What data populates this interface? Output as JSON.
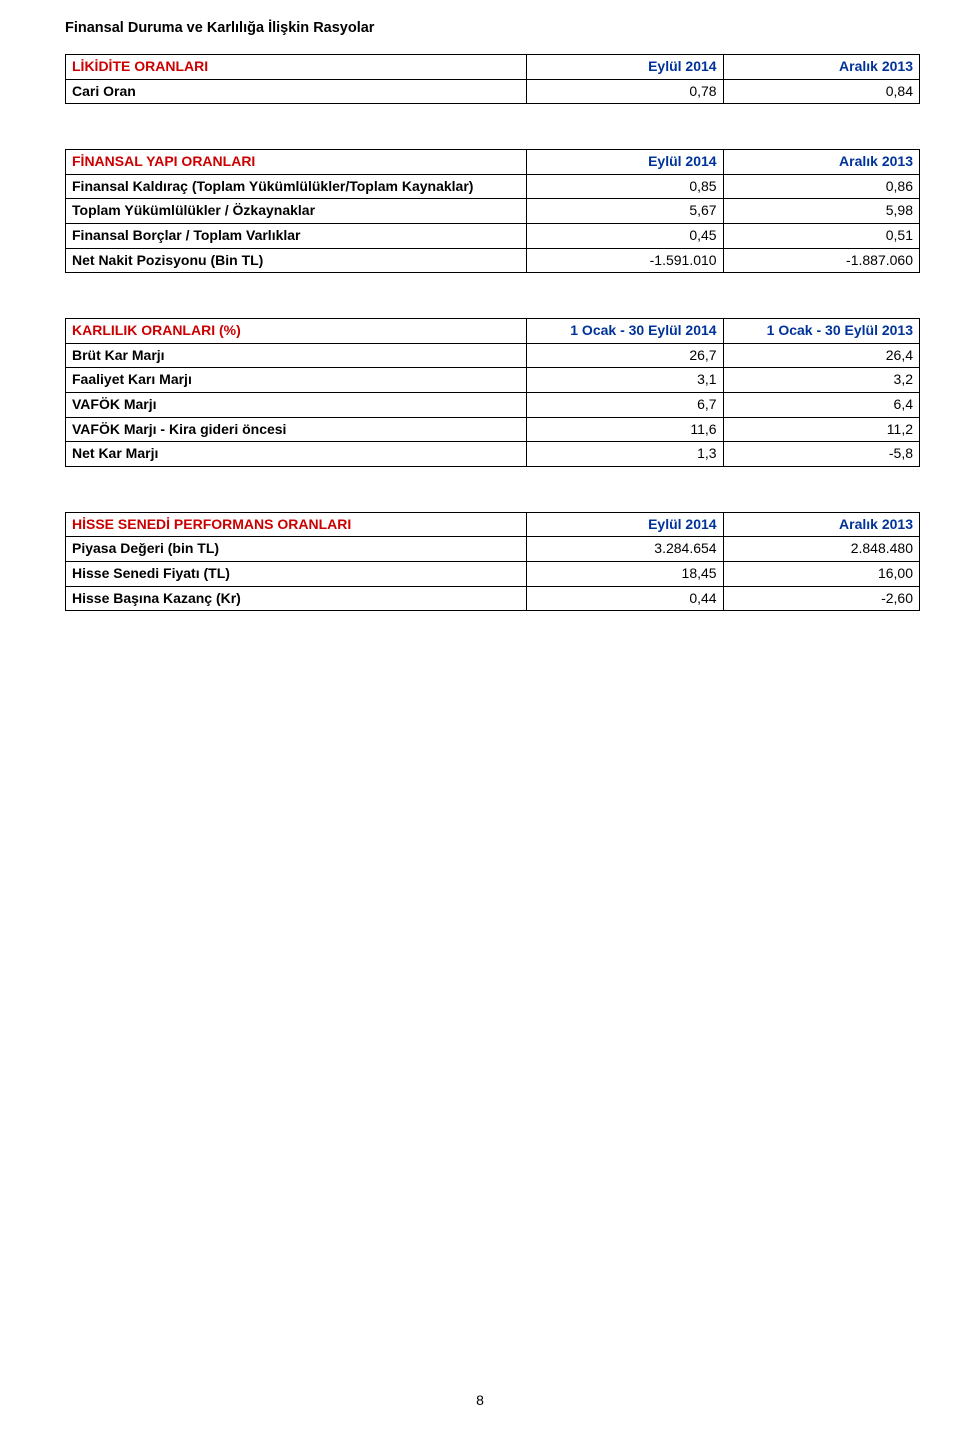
{
  "title": "Finansal Duruma ve Karlılığa İlişkin Rasyolar",
  "colors": {
    "headerLabel": "#cc0000",
    "headerCol": "#003399",
    "text": "#000000",
    "border": "#000000",
    "background": "#ffffff"
  },
  "fontSizes": {
    "title": 14.5,
    "cell": 14
  },
  "tables": [
    {
      "headerLabel": "LİKİDİTE ORANLARI",
      "col1": "Eylül 2014",
      "col2": "Aralık 2013",
      "rows": [
        {
          "label": "Cari Oran",
          "v1": "0,78",
          "v2": "0,84"
        }
      ]
    },
    {
      "headerLabel": "FİNANSAL YAPI ORANLARI",
      "col1": "Eylül 2014",
      "col2": "Aralık 2013",
      "rows": [
        {
          "label": "Finansal Kaldıraç (Toplam Yükümlülükler/Toplam Kaynaklar)",
          "v1": "0,85",
          "v2": "0,86"
        },
        {
          "label": "Toplam Yükümlülükler / Özkaynaklar",
          "v1": "5,67",
          "v2": "5,98"
        },
        {
          "label": "Finansal Borçlar / Toplam Varlıklar",
          "v1": "0,45",
          "v2": "0,51"
        },
        {
          "label": "Net Nakit Pozisyonu (Bin TL)",
          "v1": "-1.591.010",
          "v2": "-1.887.060"
        }
      ]
    },
    {
      "headerLabel": "KARLILIK ORANLARI (%)",
      "col1": "1 Ocak - 30 Eylül 2014",
      "col2": "1 Ocak - 30 Eylül 2013",
      "rows": [
        {
          "label": "Brüt Kar Marjı",
          "v1": "26,7",
          "v2": "26,4"
        },
        {
          "label": "Faaliyet Karı Marjı",
          "v1": "3,1",
          "v2": "3,2"
        },
        {
          "label": "VAFÖK Marjı",
          "v1": "6,7",
          "v2": "6,4"
        },
        {
          "label": "VAFÖK Marjı - Kira gideri öncesi",
          "v1": "11,6",
          "v2": "11,2"
        },
        {
          "label": "Net Kar Marjı",
          "v1": "1,3",
          "v2": "-5,8"
        }
      ]
    },
    {
      "headerLabel": "HİSSE SENEDİ PERFORMANS ORANLARI",
      "col1": "Eylül 2014",
      "col2": "Aralık 2013",
      "rows": [
        {
          "label": "Piyasa Değeri (bin TL)",
          "v1": "3.284.654",
          "v2": "2.848.480"
        },
        {
          "label": "Hisse Senedi Fiyatı (TL)",
          "v1": "18,45",
          "v2": "16,00"
        },
        {
          "label": "Hisse Başına Kazanç (Kr)",
          "v1": "0,44",
          "v2": "-2,60"
        }
      ]
    }
  ],
  "pageNumber": "8"
}
